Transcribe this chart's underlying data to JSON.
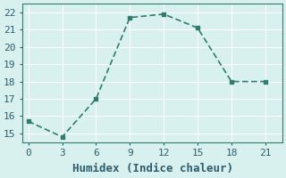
{
  "x": [
    0,
    3,
    6,
    9,
    12,
    15,
    18,
    21
  ],
  "y": [
    15.7,
    14.8,
    17.0,
    21.7,
    21.9,
    21.1,
    18.0,
    18.0
  ],
  "xlabel": "Humidex (Indice chaleur)",
  "xticks": [
    0,
    3,
    6,
    9,
    12,
    15,
    18,
    21
  ],
  "yticks": [
    15,
    16,
    17,
    18,
    19,
    20,
    21,
    22
  ],
  "ylim": [
    14.5,
    22.5
  ],
  "xlim": [
    -0.5,
    22.5
  ],
  "line_color": "#2e7d6e",
  "marker": "s",
  "marker_size": 3,
  "bg_color": "#d8f0ee",
  "grid_color": "#ffffff",
  "font_color": "#2e5e6e",
  "font_family": "monospace",
  "xlabel_fontsize": 9,
  "tick_fontsize": 8
}
